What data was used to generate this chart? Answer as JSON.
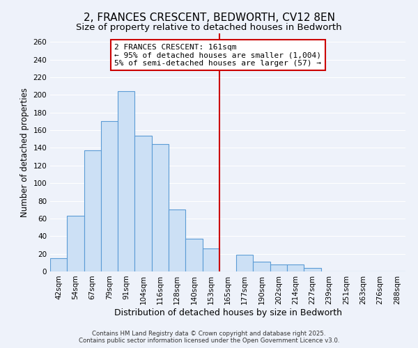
{
  "title": "2, FRANCES CRESCENT, BEDWORTH, CV12 8EN",
  "subtitle": "Size of property relative to detached houses in Bedworth",
  "xlabel": "Distribution of detached houses by size in Bedworth",
  "ylabel": "Number of detached properties",
  "footer_lines": [
    "Contains HM Land Registry data © Crown copyright and database right 2025.",
    "Contains public sector information licensed under the Open Government Licence v3.0."
  ],
  "bin_labels": [
    "42sqm",
    "54sqm",
    "67sqm",
    "79sqm",
    "91sqm",
    "104sqm",
    "116sqm",
    "128sqm",
    "140sqm",
    "153sqm",
    "165sqm",
    "177sqm",
    "190sqm",
    "202sqm",
    "214sqm",
    "227sqm",
    "239sqm",
    "251sqm",
    "263sqm",
    "276sqm",
    "288sqm"
  ],
  "bar_values": [
    15,
    63,
    137,
    170,
    204,
    154,
    144,
    70,
    37,
    26,
    0,
    19,
    11,
    8,
    8,
    4,
    0,
    0,
    0,
    0,
    0
  ],
  "bar_color": "#cce0f5",
  "bar_edge_color": "#5b9bd5",
  "bar_edge_width": 0.8,
  "annotation_text": "2 FRANCES CRESCENT: 161sqm\n← 95% of detached houses are smaller (1,004)\n5% of semi-detached houses are larger (57) →",
  "annotation_box_edge_color": "#cc0000",
  "vline_x": 10.0,
  "vline_color": "#cc0000",
  "vline_linewidth": 1.5,
  "ylim": [
    0,
    270
  ],
  "yticks": [
    0,
    20,
    40,
    60,
    80,
    100,
    120,
    140,
    160,
    180,
    200,
    220,
    240,
    260
  ],
  "background_color": "#eef2fa",
  "grid_color": "#ffffff",
  "title_fontsize": 11,
  "subtitle_fontsize": 9.5,
  "xlabel_fontsize": 9,
  "ylabel_fontsize": 8.5,
  "tick_fontsize": 7.5,
  "annotation_fontsize": 8,
  "footer_fontsize": 6.2
}
